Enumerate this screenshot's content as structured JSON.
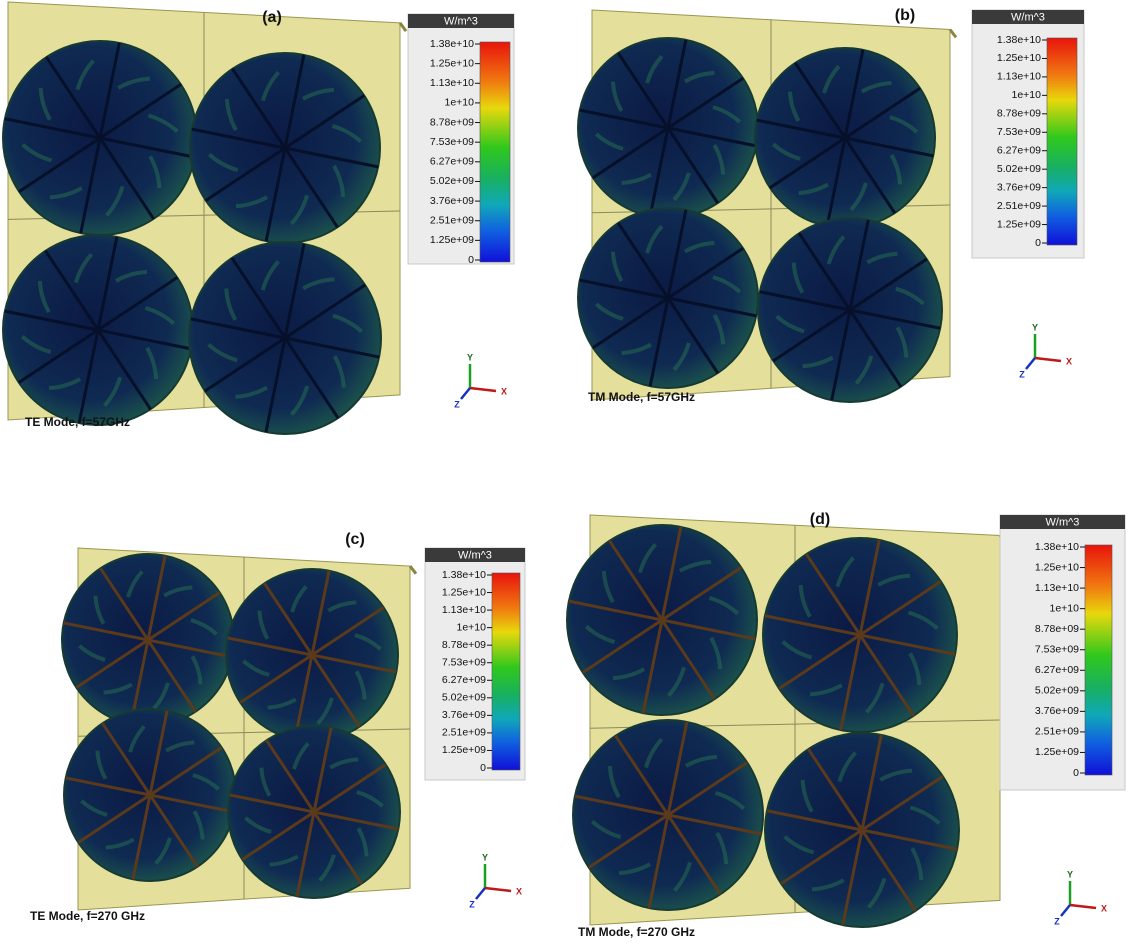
{
  "panels": [
    {
      "label": "(a)",
      "caption": "TE Mode, f=57GHz",
      "unit": "W/m^3",
      "ticks": [
        "1.38e+10",
        "1.25e+10",
        "1.13e+10",
        "1e+10",
        "8.78e+09",
        "7.53e+09",
        "6.27e+09",
        "5.02e+09",
        "3.76e+09",
        "2.51e+09",
        "1.25e+09",
        "0"
      ],
      "axes": [
        "Y",
        "X",
        "Z"
      ]
    },
    {
      "label": "(b)",
      "caption": "TM Mode, f=57GHz",
      "unit": "W/m^3",
      "ticks": [
        "1.38e+10",
        "1.25e+10",
        "1.13e+10",
        "1e+10",
        "8.78e+09",
        "7.53e+09",
        "6.27e+09",
        "5.02e+09",
        "3.76e+09",
        "2.51e+09",
        "1.25e+09",
        "0"
      ],
      "axes": [
        "Y",
        "X",
        "Z"
      ]
    },
    {
      "label": "(c)",
      "caption": "TE Mode, f=270 GHz",
      "unit": "W/m^3",
      "ticks": [
        "1.38e+10",
        "1.25e+10",
        "1.13e+10",
        "1e+10",
        "8.78e+09",
        "7.53e+09",
        "6.27e+09",
        "5.02e+09",
        "3.76e+09",
        "2.51e+09",
        "1.25e+09",
        "0"
      ],
      "axes": [
        "Y",
        "X",
        "Z"
      ]
    },
    {
      "label": "(d)",
      "caption": "TM Mode, f=270 GHz",
      "unit": "W/m^3",
      "ticks": [
        "1.38e+10",
        "1.25e+10",
        "1.13e+10",
        "1e+10",
        "8.78e+09",
        "7.53e+09",
        "6.27e+09",
        "5.02e+09",
        "3.76e+09",
        "2.51e+09",
        "1.25e+09",
        "0"
      ],
      "axes": [
        "Y",
        "X",
        "Z"
      ]
    }
  ]
}
